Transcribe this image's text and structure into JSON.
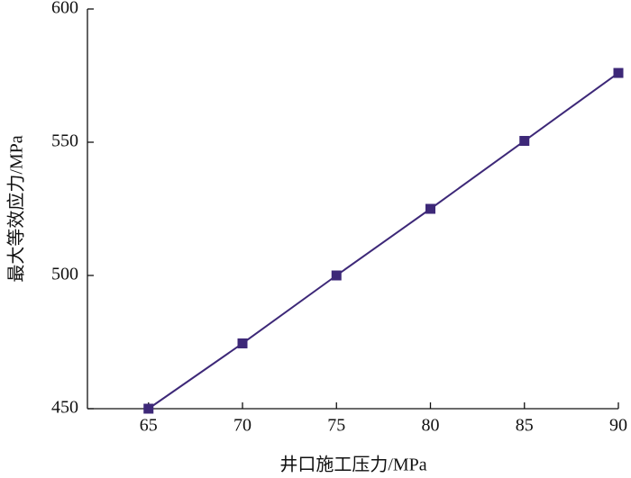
{
  "chart_data": {
    "type": "line",
    "x_label": "井口施工压力/MPa",
    "y_label": "最大等效应力/MPa",
    "x": [
      65,
      70,
      75,
      80,
      85,
      90
    ],
    "series": [
      {
        "name": "最大等效应力",
        "color": "#3d2878",
        "values": [
          450,
          474.5,
          500,
          525,
          550.5,
          576
        ]
      }
    ],
    "xlim": [
      61.75,
      90
    ],
    "xticks": [
      65,
      70,
      75,
      80,
      85,
      90
    ],
    "ylim": [
      450,
      600
    ],
    "yticks": [
      450,
      500,
      550,
      600
    ],
    "grid": false,
    "marker": "square"
  }
}
